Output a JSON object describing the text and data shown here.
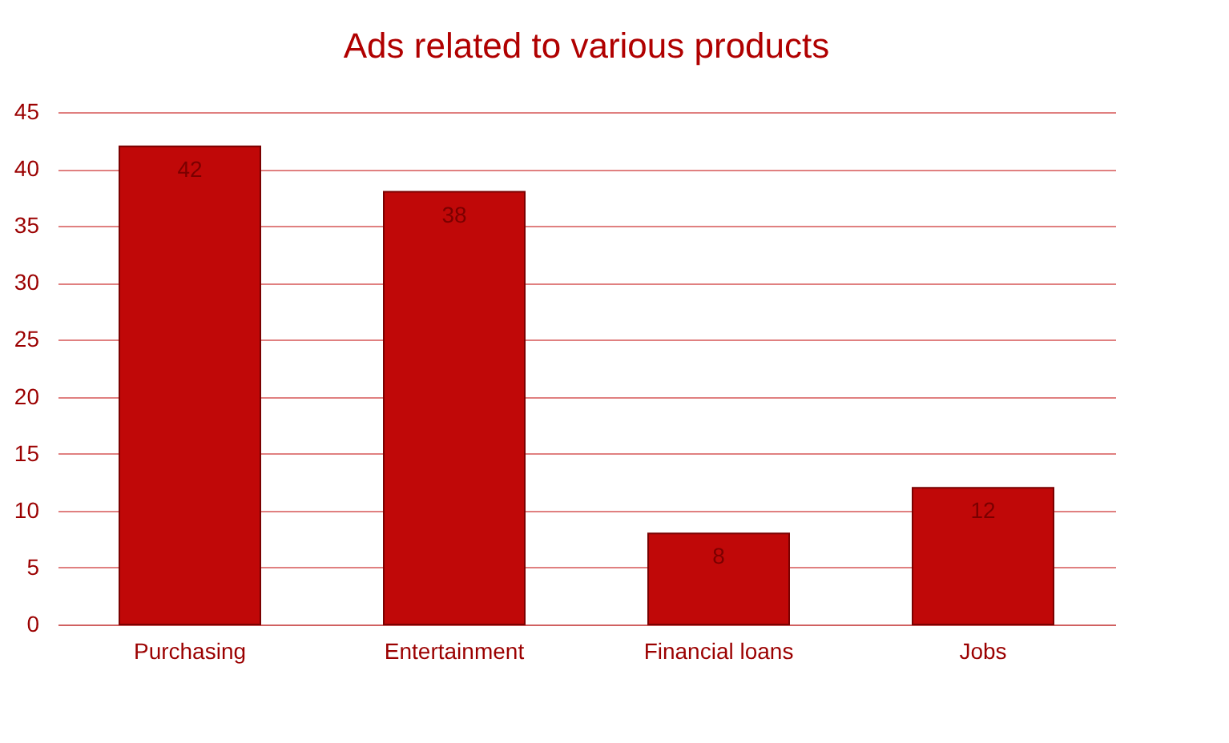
{
  "chart_data": {
    "type": "bar",
    "title": "Ads related to various products",
    "categories": [
      "Purchasing",
      "Entertainment",
      "Financial loans",
      "Jobs"
    ],
    "values": [
      42,
      38,
      8,
      12
    ],
    "color": "#c00808",
    "ylim": [
      0,
      45
    ],
    "yticks": [
      0,
      5,
      10,
      15,
      20,
      25,
      30,
      35,
      40,
      45
    ],
    "grid": "y",
    "data_labels": true
  }
}
